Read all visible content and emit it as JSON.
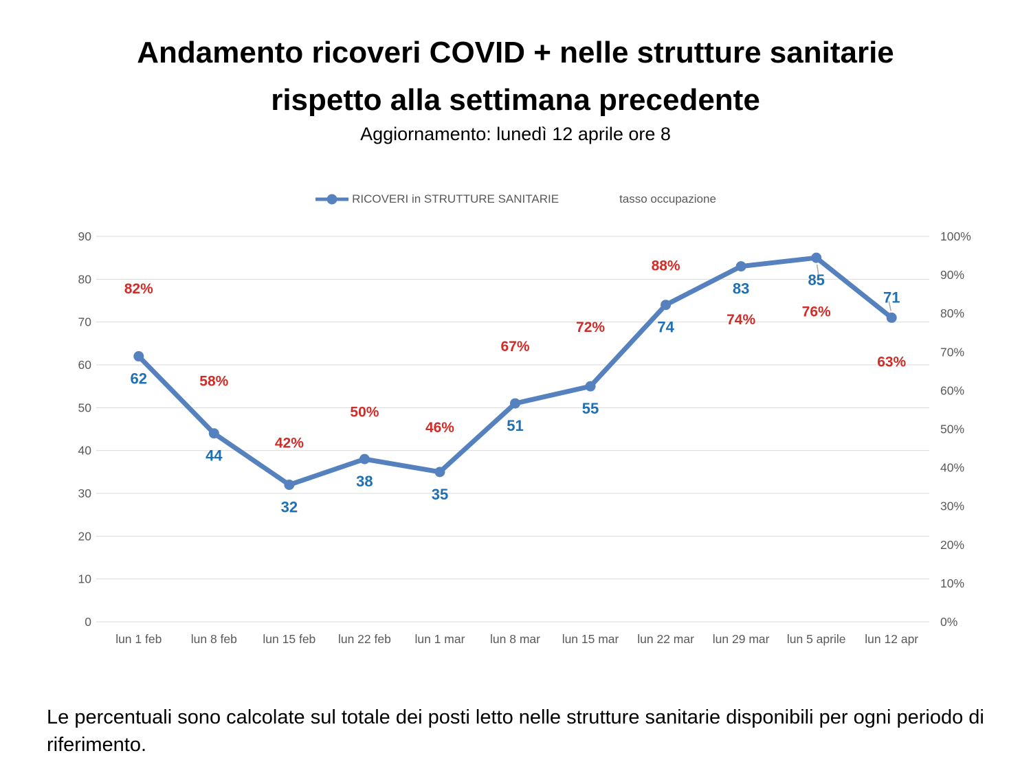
{
  "page": {
    "title_line1": "Andamento ricoveri COVID + nelle strutture sanitarie",
    "title_line2": "rispetto alla settimana precedente",
    "subtitle": "Aggiornamento: lunedì 12 aprile ore 8",
    "footnote": "Le percentuali sono calcolate sul totale dei posti letto nelle strutture sanitarie disponibili per ogni periodo di riferimento."
  },
  "legend": {
    "series1": "RICOVERI in STRUTTURE SANITARIE",
    "series2": "tasso occupazione"
  },
  "colors": {
    "line": "#5581BE",
    "marker": "#5581BE",
    "value_label": "#1F6FB5",
    "pct_label": "#D02C28",
    "gridline": "#D9D9D9",
    "axis_text": "#595959",
    "leader": "#A6A6A6"
  },
  "chart_data": {
    "type": "line",
    "title": "Andamento ricoveri COVID + nelle strutture sanitarie rispetto alla settimana precedente",
    "categories": [
      "lun 1 feb",
      "lun 8 feb",
      "lun 15 feb",
      "lun 22 feb",
      "lun 1 mar",
      "lun 8 mar",
      "lun 15 mar",
      "lun 22 mar",
      "lun 29 mar",
      "lun 5 aprile",
      "lun 12 apr"
    ],
    "series": [
      {
        "name": "RICOVERI in STRUTTURE SANITARIE",
        "axis": "left",
        "style": "line-with-markers",
        "values": [
          62,
          44,
          32,
          38,
          35,
          51,
          55,
          74,
          83,
          85,
          71
        ]
      },
      {
        "name": "tasso occupazione",
        "axis": "right",
        "style": "labels-only",
        "values": [
          82,
          58,
          42,
          50,
          46,
          67,
          72,
          88,
          74,
          76,
          63
        ],
        "label_suffix": "%"
      }
    ],
    "left_axis": {
      "min": 0,
      "max": 90,
      "step": 10,
      "tick_labels": [
        "0",
        "10",
        "20",
        "30",
        "40",
        "50",
        "60",
        "70",
        "80",
        "90"
      ]
    },
    "right_axis": {
      "min": 0,
      "max": 100,
      "step": 10,
      "tick_labels": [
        "0%",
        "10%",
        "20%",
        "30%",
        "40%",
        "50%",
        "60%",
        "70%",
        "80%",
        "90%",
        "100%"
      ]
    },
    "grid": "horizontal",
    "legend_position": "top",
    "label_sides": [
      "below",
      "below",
      "below",
      "below",
      "below",
      "below",
      "below",
      "below",
      "below",
      "below",
      "above"
    ],
    "leader_lines": [
      false,
      false,
      false,
      false,
      false,
      false,
      false,
      false,
      false,
      true,
      true
    ]
  }
}
